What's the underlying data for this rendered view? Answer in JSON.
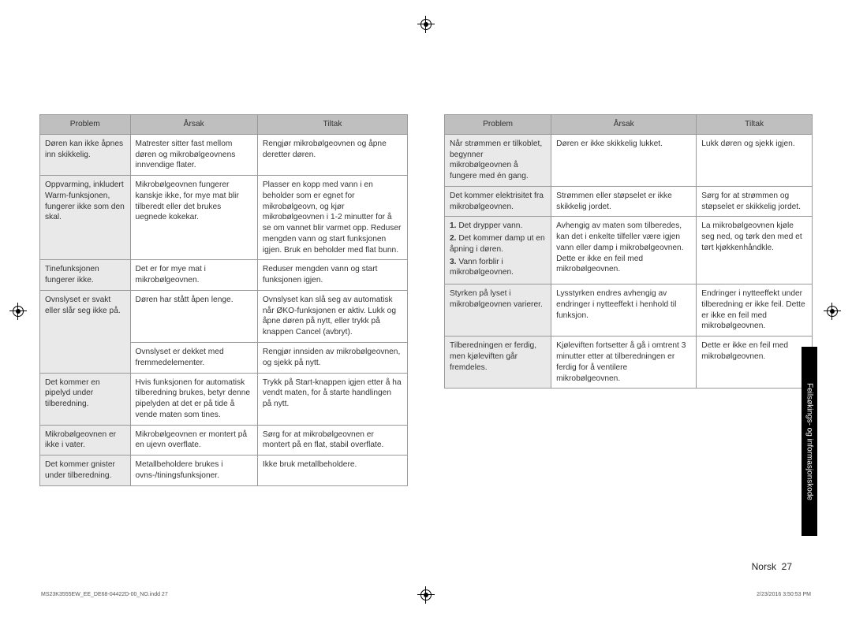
{
  "tables": {
    "left": {
      "headers": [
        "Problem",
        "Årsak",
        "Tiltak"
      ],
      "rows": [
        {
          "problem": "Døren kan ikke åpnes inn skikkelig.",
          "cause": "Matrester sitter fast mellom døren og mikrobølgeovnens innvendige flater.",
          "action": "Rengjør mikrobølgeovnen og åpne deretter døren."
        },
        {
          "problem": "Oppvarming, inkludert Warm-funksjonen, fungerer ikke som den skal.",
          "cause": "Mikrobølgeovnen fungerer kanskje ikke, for mye mat blir tilberedt eller det brukes uegnede kokekar.",
          "action": "Plasser en kopp med vann i en beholder som er egnet for mikrobølgeovn, og kjør mikrobølgeovnen i 1-2 minutter for å se om vannet blir varmet opp. Reduser mengden vann og start funksjonen igjen. Bruk en beholder med flat bunn."
        },
        {
          "problem": "Tinefunksjonen fungerer ikke.",
          "cause": "Det er for mye mat i mikrobølgeovnen.",
          "action": "Reduser mengden vann og start funksjonen igjen."
        },
        {
          "problem": "Ovnslyset er svakt eller slår seg ikke på.",
          "cause": "Døren har stått åpen lenge.",
          "action": "Ovnslyset kan slå seg av automatisk når ØKO-funksjonen er aktiv. Lukk og åpne døren på nytt, eller trykk på knappen Cancel (avbryt)."
        },
        {
          "problem": "",
          "cause": "Ovnslyset er dekket med fremmedelementer.",
          "action": "Rengjør innsiden av mikrobølgeovnen, og sjekk på nytt.",
          "merge_up": true
        },
        {
          "problem": "Det kommer en pipelyd under tilberedning.",
          "cause": "Hvis funksjonen for automatisk tilberedning brukes, betyr denne pipelyden at det er på tide å vende maten som tines.",
          "action": "Trykk på Start-knappen igjen etter å ha vendt maten, for å starte handlingen på nytt."
        },
        {
          "problem": "Mikrobølgeovnen er ikke i vater.",
          "cause": "Mikrobølgeovnen er montert på en ujevn overflate.",
          "action": "Sørg for at mikrobølgeovnen er montert på en flat, stabil overflate."
        },
        {
          "problem": "Det kommer gnister under tilberedning.",
          "cause": "Metallbeholdere brukes i ovns-/tiningsfunksjoner.",
          "action": "Ikke bruk metallbeholdere."
        }
      ]
    },
    "right": {
      "headers": [
        "Problem",
        "Årsak",
        "Tiltak"
      ],
      "rows": [
        {
          "problem": "Når strømmen er tilkoblet, begynner mikrobølgeovnen å fungere med én gang.",
          "cause": "Døren er ikke skikkelig lukket.",
          "action": "Lukk døren og sjekk igjen."
        },
        {
          "problem": "Det kommer elektrisitet fra mikrobølgeovnen.",
          "cause": "Strømmen eller støpselet er ikke skikkelig jordet.",
          "action": "Sørg for at strømmen og støpselet er skikkelig jordet."
        },
        {
          "problem_list": [
            {
              "n": "1.",
              "t": "Det drypper vann."
            },
            {
              "n": "2.",
              "t": "Det kommer damp ut en åpning i døren."
            },
            {
              "n": "3.",
              "t": "Vann forblir i mikrobølgeovnen."
            }
          ],
          "cause": "Avhengig av maten som tilberedes, kan det i enkelte tilfeller være igjen vann eller damp i mikrobølgeovnen. Dette er ikke en feil med mikrobølgeovnen.",
          "action": "La mikrobølgeovnen kjøle seg ned, og tørk den med et tørt kjøkkenhåndkle."
        },
        {
          "problem": "Styrken på lyset i mikrobølgeovnen varierer.",
          "cause": "Lysstyrken endres avhengig av endringer i nytteeffekt i henhold til funksjon.",
          "action": "Endringer i nytteeffekt under tilberedning er ikke feil. Dette er ikke en feil med mikrobølgeovnen."
        },
        {
          "problem": "Tilberedningen er ferdig, men kjøleviften går fremdeles.",
          "cause": "Kjøleviften fortsetter å gå i omtrent 3 minutter etter at tilberedningen er ferdig for å ventilere mikrobølgeovnen.",
          "action": "Dette er ikke en feil med mikrobølgeovnen."
        }
      ]
    }
  },
  "sideTab": "Feilsøkings- og informasjonskode",
  "pageFooter": {
    "lang": "Norsk",
    "num": "27"
  },
  "meta": {
    "file": "MS23K3555EW_EE_DE68-04422D-00_NO.indd   27",
    "timestamp": "2/23/2016   3:50:53 PM"
  }
}
